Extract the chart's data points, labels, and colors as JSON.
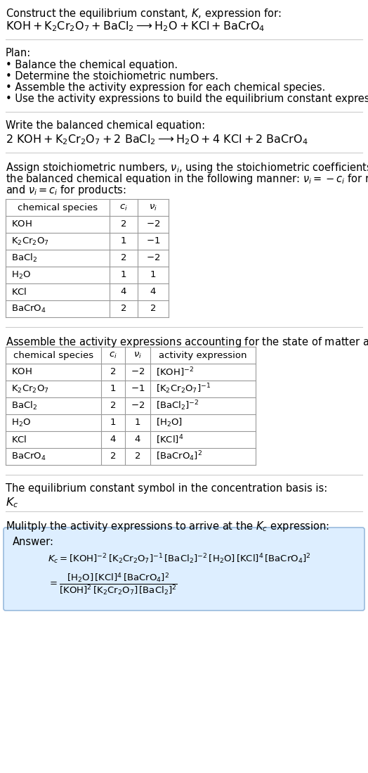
{
  "bg_color": "#ffffff",
  "text_color": "#000000",
  "title_line1": "Construct the equilibrium constant, $K$, expression for:",
  "title_line2": "$\\mathrm{KOH + K_2Cr_2O_7 + BaCl_2 \\longrightarrow H_2O + KCl + BaCrO_4}$",
  "plan_header": "Plan:",
  "plan_items": [
    "• Balance the chemical equation.",
    "• Determine the stoichiometric numbers.",
    "• Assemble the activity expression for each chemical species.",
    "• Use the activity expressions to build the equilibrium constant expression."
  ],
  "balanced_header": "Write the balanced chemical equation:",
  "balanced_eq": "$\\mathrm{2\\ KOH + K_2Cr_2O_7 + 2\\ BaCl_2 \\longrightarrow H_2O + 4\\ KCl + 2\\ BaCrO_4}$",
  "stoich_lines": [
    "Assign stoichiometric numbers, $\\nu_i$, using the stoichiometric coefficients, $c_i$, from",
    "the balanced chemical equation in the following manner: $\\nu_i = -c_i$ for reactants",
    "and $\\nu_i = c_i$ for products:"
  ],
  "table1_headers": [
    "chemical species",
    "$c_i$",
    "$\\nu_i$"
  ],
  "table1_rows": [
    [
      "$\\mathrm{KOH}$",
      "2",
      "$-2$"
    ],
    [
      "$\\mathrm{K_2Cr_2O_7}$",
      "1",
      "$-1$"
    ],
    [
      "$\\mathrm{BaCl_2}$",
      "2",
      "$-2$"
    ],
    [
      "$\\mathrm{H_2O}$",
      "1",
      "1"
    ],
    [
      "$\\mathrm{KCl}$",
      "4",
      "4"
    ],
    [
      "$\\mathrm{BaCrO_4}$",
      "2",
      "2"
    ]
  ],
  "assemble_header": "Assemble the activity expressions accounting for the state of matter and $\\nu_i$:",
  "table2_headers": [
    "chemical species",
    "$c_i$",
    "$\\nu_i$",
    "activity expression"
  ],
  "table2_rows": [
    [
      "$\\mathrm{KOH}$",
      "2",
      "$-2$",
      "$[\\mathrm{KOH}]^{-2}$"
    ],
    [
      "$\\mathrm{K_2Cr_2O_7}$",
      "1",
      "$-1$",
      "$[\\mathrm{K_2Cr_2O_7}]^{-1}$"
    ],
    [
      "$\\mathrm{BaCl_2}$",
      "2",
      "$-2$",
      "$[\\mathrm{BaCl_2}]^{-2}$"
    ],
    [
      "$\\mathrm{H_2O}$",
      "1",
      "1",
      "$[\\mathrm{H_2O}]$"
    ],
    [
      "$\\mathrm{KCl}$",
      "4",
      "4",
      "$[\\mathrm{KCl}]^4$"
    ],
    [
      "$\\mathrm{BaCrO_4}$",
      "2",
      "2",
      "$[\\mathrm{BaCrO_4}]^2$"
    ]
  ],
  "kc_header": "The equilibrium constant symbol in the concentration basis is:",
  "kc_symbol": "$K_c$",
  "multiply_header": "Mulitply the activity expressions to arrive at the $K_c$ expression:",
  "answer_label": "Answer:",
  "answer_line1": "$K_c = [\\mathrm{KOH}]^{-2}\\,[\\mathrm{K_2Cr_2O_7}]^{-1}\\,[\\mathrm{BaCl_2}]^{-2}\\,[\\mathrm{H_2O}]\\,[\\mathrm{KCl}]^4\\,[\\mathrm{BaCrO_4}]^2$",
  "answer_eq_lhs": "$= \\dfrac{[\\mathrm{H_2O}]\\,[\\mathrm{KCl}]^4\\,[\\mathrm{BaCrO_4}]^2}{[\\mathrm{KOH}]^2\\,[\\mathrm{K_2Cr_2O_7}]\\,[\\mathrm{BaCl_2}]^2}$",
  "answer_box_color": "#ddeeff",
  "answer_box_border": "#99bbdd",
  "table_border_color": "#999999",
  "separator_color": "#cccccc",
  "fs_body": 10.5,
  "fs_small": 9.5,
  "fs_eq": 11.5
}
